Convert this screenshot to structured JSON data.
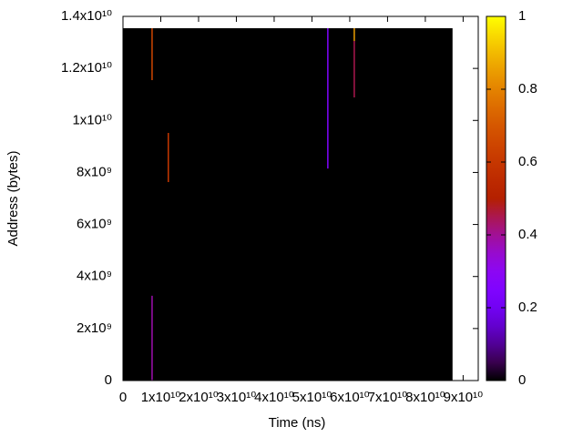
{
  "chart_data": {
    "type": "heatmap",
    "x_label": "Time (ns)",
    "y_label": "Address (bytes)",
    "xlim": [
      0,
      94000000000
    ],
    "ylim": [
      0,
      14000000000
    ],
    "zlim": [
      0,
      1
    ],
    "xticks": [
      0,
      {
        "value": 10000000000,
        "label": "1x10¹⁰"
      },
      {
        "value": 20000000000,
        "label": "2x10¹⁰"
      },
      {
        "value": 30000000000,
        "label": "3x10¹⁰"
      },
      {
        "value": 40000000000,
        "label": "4x10¹⁰"
      },
      {
        "value": 50000000000,
        "label": "5x10¹⁰"
      },
      {
        "value": 60000000000,
        "label": "6x10¹⁰"
      },
      {
        "value": 70000000000,
        "label": "7x10¹⁰"
      },
      {
        "value": 80000000000,
        "label": "8x10¹⁰"
      },
      {
        "value": 90000000000,
        "label": "9x10¹⁰"
      }
    ],
    "yticks": [
      0,
      {
        "value": 2000000000,
        "label": "2x10⁹"
      },
      {
        "value": 4000000000,
        "label": "4x10⁹"
      },
      {
        "value": 6000000000,
        "label": "6x10⁹"
      },
      {
        "value": 8000000000,
        "label": "8x10⁹"
      },
      {
        "value": 10000000000,
        "label": "1x10¹⁰"
      },
      {
        "value": 12000000000,
        "label": "1.2x10¹⁰"
      },
      {
        "value": 14000000000,
        "label": "1.4x10¹⁰"
      }
    ],
    "zticks": [
      0,
      0.2,
      0.4,
      0.6,
      0.8,
      1
    ],
    "background": {
      "value": 0,
      "x": [
        0,
        87200000000
      ],
      "y": [
        0,
        13545000000
      ]
    },
    "streaks": [
      {
        "x": 7700000000,
        "y0": 0,
        "y1": 3260000000,
        "value": 0.38
      },
      {
        "x": 7700000000,
        "y0": 11550000000,
        "y1": 13545000000,
        "value": 0.65
      },
      {
        "x": 12000000000,
        "y0": 7630000000,
        "y1": 9520000000,
        "value": 0.6
      },
      {
        "x": 54200000000,
        "y0": 8150000000,
        "y1": 13545000000,
        "value": 0.25
      },
      {
        "x": 61200000000,
        "y0": 10885000000,
        "y1": 13055000000,
        "value": 0.45
      },
      {
        "x": 61200000000,
        "y0": 13055000000,
        "y1": 13545000000,
        "value": 0.85
      }
    ]
  }
}
